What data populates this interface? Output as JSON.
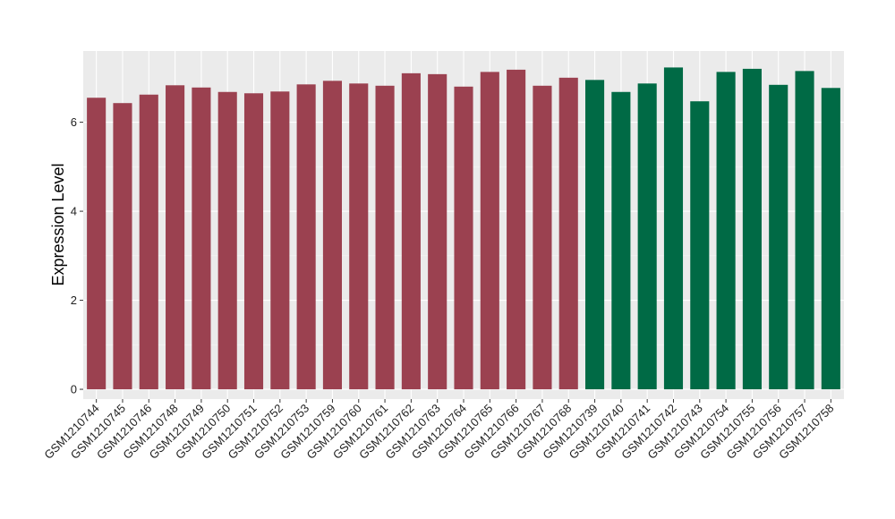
{
  "chart_data": {
    "type": "bar",
    "title": "",
    "xlabel": "",
    "ylabel": "Expression Level",
    "ylim": [
      -0.22,
      7.6
    ],
    "yticks": [
      0,
      2,
      4,
      6
    ],
    "grid": true,
    "legend": "none",
    "colors": {
      "panel_background": "#ebebeb",
      "grid_major": "#ffffff",
      "grid_minor": "#f5f5f5"
    },
    "series": [
      {
        "color": "#9b4150",
        "categories": [
          "GSM1210744",
          "GSM1210745",
          "GSM1210746",
          "GSM1210748",
          "GSM1210749",
          "GSM1210750",
          "GSM1210751",
          "GSM1210752",
          "GSM1210753",
          "GSM1210759",
          "GSM1210760",
          "GSM1210761",
          "GSM1210762",
          "GSM1210763",
          "GSM1210764",
          "GSM1210765",
          "GSM1210766",
          "GSM1210767",
          "GSM1210768"
        ],
        "values": [
          6.55,
          6.43,
          6.62,
          6.83,
          6.78,
          6.68,
          6.65,
          6.69,
          6.85,
          6.93,
          6.87,
          6.82,
          7.1,
          7.08,
          6.8,
          7.13,
          7.18,
          6.82,
          7.0
        ]
      },
      {
        "color": "#006a45",
        "categories": [
          "GSM1210739",
          "GSM1210740",
          "GSM1210741",
          "GSM1210742",
          "GSM1210743",
          "GSM1210754",
          "GSM1210755",
          "GSM1210756",
          "GSM1210757",
          "GSM1210758"
        ],
        "values": [
          6.95,
          6.68,
          6.87,
          7.23,
          6.47,
          7.13,
          7.2,
          6.84,
          7.15,
          6.77
        ]
      }
    ]
  }
}
